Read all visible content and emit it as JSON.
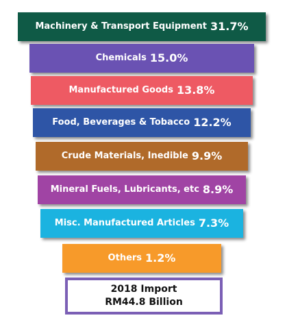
{
  "chart_data": {
    "type": "funnel",
    "categories": [
      "Machinery & Transport Equipment",
      "Chemicals",
      "Manufactured Goods",
      "Food, Beverages & Tobacco",
      "Crude Materials, Inedible",
      "Mineral Fuels, Lubricants, etc",
      "Misc. Manufactured Articles",
      "Others"
    ],
    "values": [
      31.7,
      15.0,
      13.8,
      12.2,
      9.9,
      8.9,
      7.3,
      1.2
    ],
    "value_labels": [
      "31.7%",
      "15.0%",
      "13.8%",
      "12.2%",
      "9.9%",
      "8.9%",
      "7.3%",
      "1.2%"
    ],
    "colors": [
      "#0f5a46",
      "#6a52b3",
      "#ee5a63",
      "#2e55a6",
      "#b06a2a",
      "#a044a4",
      "#1bb3e0",
      "#f79a2a"
    ],
    "annotation": [
      "2018 Import",
      "RM44.8 Billion"
    ]
  }
}
